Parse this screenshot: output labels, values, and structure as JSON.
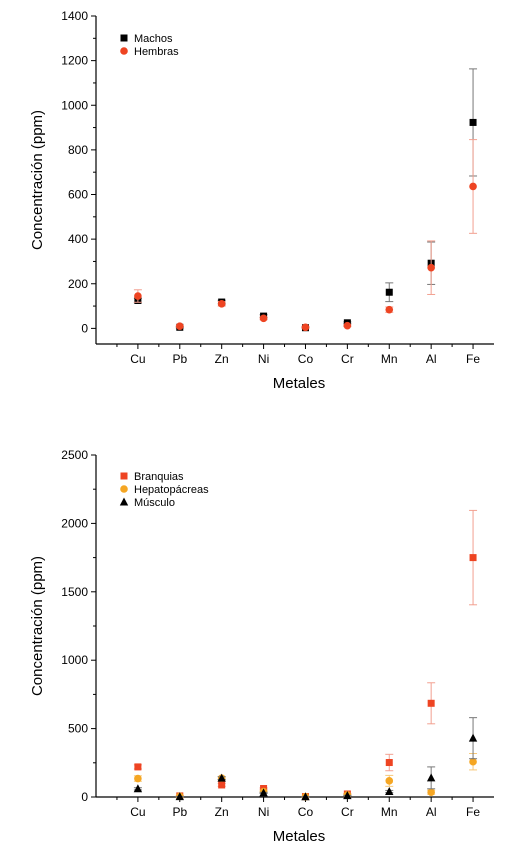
{
  "chart_data": [
    {
      "type": "scatter",
      "xlabel": "Metales",
      "ylabel": "Concentración (ppm)",
      "categories": [
        "Cu",
        "Pb",
        "Zn",
        "Ni",
        "Co",
        "Cr",
        "Mn",
        "Al",
        "Fe"
      ],
      "ylim": [
        -70,
        1400
      ],
      "yticks": [
        0,
        200,
        400,
        600,
        800,
        1000,
        1200,
        1400
      ],
      "legend_position": "top-left",
      "grid": false,
      "series": [
        {
          "name": "Machos",
          "marker": "square",
          "color": "#000000",
          "error_color": "#777777",
          "values": [
            125,
            5,
            118,
            55,
            3,
            25,
            162,
            292,
            923
          ],
          "errors": [
            10,
            3,
            8,
            6,
            2,
            4,
            42,
            95,
            240
          ]
        },
        {
          "name": "Hembras",
          "marker": "circle",
          "color": "#ee4422",
          "error_color": "#f2a090",
          "values": [
            145,
            10,
            110,
            45,
            5,
            12,
            84,
            272,
            636
          ],
          "errors": [
            28,
            4,
            10,
            6,
            3,
            4,
            12,
            120,
            210
          ]
        }
      ]
    },
    {
      "type": "scatter",
      "xlabel": "Metales",
      "ylabel": "Concentración (ppm)",
      "categories": [
        "Cu",
        "Pb",
        "Zn",
        "Ni",
        "Co",
        "Cr",
        "Mn",
        "Al",
        "Fe"
      ],
      "ylim": [
        0,
        2500
      ],
      "yticks": [
        0,
        500,
        1000,
        1500,
        2000,
        2500
      ],
      "legend_position": "top-left",
      "grid": false,
      "series": [
        {
          "name": "Branquias",
          "marker": "square",
          "color": "#ee4422",
          "error_color": "#f2a090",
          "values": [
            220,
            8,
            88,
            62,
            3,
            22,
            252,
            685,
            1750
          ],
          "errors": [
            15,
            3,
            10,
            5,
            2,
            4,
            60,
            150,
            345
          ]
        },
        {
          "name": "Hepatopácreas",
          "marker": "circle",
          "color": "#f5a623",
          "error_color": "#f7c878",
          "values": [
            135,
            5,
            138,
            40,
            2,
            15,
            118,
            35,
            258
          ],
          "errors": [
            20,
            2,
            12,
            5,
            1,
            3,
            40,
            15,
            60
          ]
        },
        {
          "name": "Músculo",
          "marker": "triangle",
          "color": "#000000",
          "error_color": "#777777",
          "values": [
            60,
            3,
            138,
            30,
            2,
            10,
            40,
            140,
            430
          ],
          "errors": [
            8,
            1,
            10,
            4,
            1,
            2,
            8,
            80,
            150
          ]
        }
      ]
    }
  ]
}
